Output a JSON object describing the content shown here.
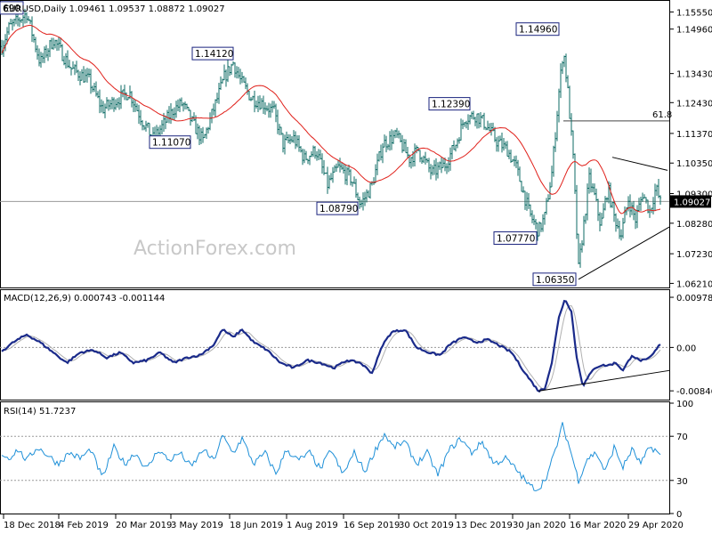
{
  "chart_data": [
    {
      "type": "ohlc",
      "symbol_header": "EURUSD,Daily  1.09461 1.09537 1.08872 1.09027",
      "last_price_label": "1.09027",
      "y_ticks": [
        "1.15550",
        "1.14960",
        "1.13430",
        "1.12430",
        "1.11370",
        "1.10350",
        "1.09300",
        "1.08280",
        "1.07230",
        "1.06210"
      ],
      "ylim": [
        1.061,
        1.159
      ],
      "moving_average": "red",
      "annotations": [
        {
          "label": "690",
          "value": 1.1569
        },
        {
          "label": "1.14120",
          "value": 1.1412
        },
        {
          "label": "1.11070",
          "value": 1.1107
        },
        {
          "label": "1.08790",
          "value": 1.0879
        },
        {
          "label": "1.12390",
          "value": 1.1239
        },
        {
          "label": "1.14960",
          "value": 1.1496
        },
        {
          "label": "1.07770",
          "value": 1.0777
        },
        {
          "label": "1.06350",
          "value": 1.0635
        }
      ],
      "fib_label": "61.8",
      "fib_value": 1.118,
      "watermark": "ActionForex.com",
      "series_close_anchors": [
        [
          0,
          1.142
        ],
        [
          10,
          1.15
        ],
        [
          30,
          1.155
        ],
        [
          45,
          1.138
        ],
        [
          60,
          1.146
        ],
        [
          80,
          1.136
        ],
        [
          100,
          1.132
        ],
        [
          115,
          1.122
        ],
        [
          130,
          1.125
        ],
        [
          145,
          1.128
        ],
        [
          160,
          1.118
        ],
        [
          172,
          1.112
        ],
        [
          182,
          1.116
        ],
        [
          195,
          1.122
        ],
        [
          205,
          1.124
        ],
        [
          215,
          1.118
        ],
        [
          228,
          1.111
        ],
        [
          240,
          1.122
        ],
        [
          252,
          1.133
        ],
        [
          262,
          1.138
        ],
        [
          270,
          1.132
        ],
        [
          282,
          1.126
        ],
        [
          295,
          1.124
        ],
        [
          308,
          1.121
        ],
        [
          318,
          1.11
        ],
        [
          330,
          1.112
        ],
        [
          342,
          1.105
        ],
        [
          355,
          1.108
        ],
        [
          368,
          1.096
        ],
        [
          380,
          1.102
        ],
        [
          395,
          1.098
        ],
        [
          405,
          1.089
        ],
        [
          418,
          1.096
        ],
        [
          430,
          1.11
        ],
        [
          445,
          1.113
        ],
        [
          460,
          1.105
        ],
        [
          470,
          1.108
        ],
        [
          485,
          1.1
        ],
        [
          500,
          1.103
        ],
        [
          512,
          1.11
        ],
        [
          522,
          1.119
        ],
        [
          535,
          1.12
        ],
        [
          545,
          1.117
        ],
        [
          558,
          1.111
        ],
        [
          570,
          1.108
        ],
        [
          580,
          1.102
        ],
        [
          595,
          1.086
        ],
        [
          605,
          1.08
        ],
        [
          612,
          1.085
        ],
        [
          620,
          1.1
        ],
        [
          628,
          1.128
        ],
        [
          633,
          1.143
        ],
        [
          638,
          1.128
        ],
        [
          644,
          1.105
        ],
        [
          650,
          1.067
        ],
        [
          655,
          1.08
        ],
        [
          662,
          1.098
        ],
        [
          668,
          1.092
        ],
        [
          675,
          1.082
        ],
        [
          683,
          1.095
        ],
        [
          690,
          1.085
        ],
        [
          698,
          1.079
        ],
        [
          706,
          1.091
        ],
        [
          714,
          1.084
        ],
        [
          722,
          1.093
        ],
        [
          730,
          1.087
        ],
        [
          737,
          1.095
        ],
        [
          742,
          1.09
        ]
      ]
    },
    {
      "type": "line",
      "header": "MACD(12,26,9) 0.000743 -0.001144",
      "y_ticks": [
        "0.00978",
        "0.00",
        "-0.008464"
      ],
      "ylim": [
        -0.01,
        0.011
      ],
      "macd_anchors": [
        [
          0,
          -0.001
        ],
        [
          15,
          0.001
        ],
        [
          30,
          0.0025
        ],
        [
          45,
          0.001
        ],
        [
          60,
          -0.001
        ],
        [
          75,
          -0.003
        ],
        [
          90,
          -0.001
        ],
        [
          105,
          -0.0005
        ],
        [
          120,
          -0.002
        ],
        [
          135,
          -0.001
        ],
        [
          150,
          -0.003
        ],
        [
          165,
          -0.0025
        ],
        [
          180,
          -0.001
        ],
        [
          195,
          -0.003
        ],
        [
          210,
          -0.002
        ],
        [
          225,
          -0.0015
        ],
        [
          240,
          0.0005
        ],
        [
          250,
          0.0035
        ],
        [
          262,
          0.002
        ],
        [
          272,
          0.0035
        ],
        [
          285,
          0.001
        ],
        [
          300,
          -0.0005
        ],
        [
          315,
          -0.003
        ],
        [
          330,
          -0.004
        ],
        [
          345,
          -0.0025
        ],
        [
          360,
          -0.003
        ],
        [
          375,
          -0.004
        ],
        [
          390,
          -0.0025
        ],
        [
          405,
          -0.003
        ],
        [
          418,
          -0.005
        ],
        [
          430,
          0.0005
        ],
        [
          440,
          0.003
        ],
        [
          455,
          0.0035
        ],
        [
          468,
          0.0
        ],
        [
          482,
          -0.001
        ],
        [
          495,
          -0.0015
        ],
        [
          505,
          0.0005
        ],
        [
          520,
          0.002
        ],
        [
          535,
          0.001
        ],
        [
          548,
          0.0015
        ],
        [
          560,
          0.0005
        ],
        [
          575,
          -0.001
        ],
        [
          590,
          -0.005
        ],
        [
          605,
          -0.0085
        ],
        [
          612,
          -0.008
        ],
        [
          620,
          -0.003
        ],
        [
          628,
          0.006
        ],
        [
          635,
          0.0095
        ],
        [
          642,
          0.007
        ],
        [
          648,
          -0.002
        ],
        [
          655,
          -0.0075
        ],
        [
          662,
          -0.0055
        ],
        [
          668,
          -0.004
        ],
        [
          675,
          -0.0035
        ],
        [
          683,
          -0.0035
        ],
        [
          692,
          -0.003
        ],
        [
          700,
          -0.0045
        ],
        [
          710,
          -0.0015
        ],
        [
          718,
          -0.0025
        ],
        [
          726,
          -0.0025
        ],
        [
          733,
          -0.0015
        ],
        [
          742,
          0.0007
        ]
      ]
    },
    {
      "type": "line",
      "header": "RSI(14) 51.7237",
      "y_ticks": [
        "100",
        "70",
        "30",
        "0"
      ],
      "ylim": [
        0,
        100
      ],
      "rsi_anchors": [
        [
          0,
          55
        ],
        [
          10,
          50
        ],
        [
          20,
          58
        ],
        [
          30,
          48
        ],
        [
          42,
          60
        ],
        [
          55,
          52
        ],
        [
          65,
          45
        ],
        [
          78,
          55
        ],
        [
          90,
          50
        ],
        [
          102,
          58
        ],
        [
          115,
          32
        ],
        [
          128,
          60
        ],
        [
          140,
          45
        ],
        [
          152,
          55
        ],
        [
          165,
          40
        ],
        [
          178,
          58
        ],
        [
          190,
          48
        ],
        [
          202,
          55
        ],
        [
          215,
          42
        ],
        [
          228,
          58
        ],
        [
          240,
          48
        ],
        [
          250,
          70
        ],
        [
          262,
          55
        ],
        [
          272,
          68
        ],
        [
          285,
          45
        ],
        [
          298,
          55
        ],
        [
          310,
          36
        ],
        [
          322,
          58
        ],
        [
          335,
          48
        ],
        [
          348,
          55
        ],
        [
          360,
          40
        ],
        [
          372,
          58
        ],
        [
          385,
          35
        ],
        [
          398,
          55
        ],
        [
          410,
          38
        ],
        [
          422,
          58
        ],
        [
          432,
          72
        ],
        [
          442,
          60
        ],
        [
          455,
          65
        ],
        [
          468,
          45
        ],
        [
          480,
          55
        ],
        [
          492,
          35
        ],
        [
          505,
          58
        ],
        [
          518,
          68
        ],
        [
          530,
          55
        ],
        [
          542,
          65
        ],
        [
          555,
          45
        ],
        [
          568,
          50
        ],
        [
          580,
          40
        ],
        [
          595,
          25
        ],
        [
          605,
          22
        ],
        [
          615,
          35
        ],
        [
          625,
          60
        ],
        [
          632,
          80
        ],
        [
          640,
          60
        ],
        [
          650,
          30
        ],
        [
          660,
          50
        ],
        [
          670,
          55
        ],
        [
          680,
          38
        ],
        [
          690,
          60
        ],
        [
          700,
          42
        ],
        [
          710,
          58
        ],
        [
          720,
          45
        ],
        [
          730,
          60
        ],
        [
          736,
          58
        ],
        [
          742,
          52
        ]
      ]
    }
  ],
  "x_tick_labels": [
    "18 Dec 2018",
    "4 Feb 2019",
    "20 Mar 2019",
    "3 May 2019",
    "18 Jun 2019",
    "1 Aug 2019",
    "16 Sep 2019",
    "30 Oct 2019",
    "13 Dec 2019",
    "30 Jan 2020",
    "16 Mar 2020",
    "29 Apr 2020"
  ],
  "colors": {
    "bars": "#0d6b64",
    "ma": "#e0201a",
    "macd": "#1a2a8a",
    "signal": "#b0b0b0",
    "rsi": "#1e90d8",
    "grid": "#9a9a9a",
    "box_border": "#1a237e"
  }
}
